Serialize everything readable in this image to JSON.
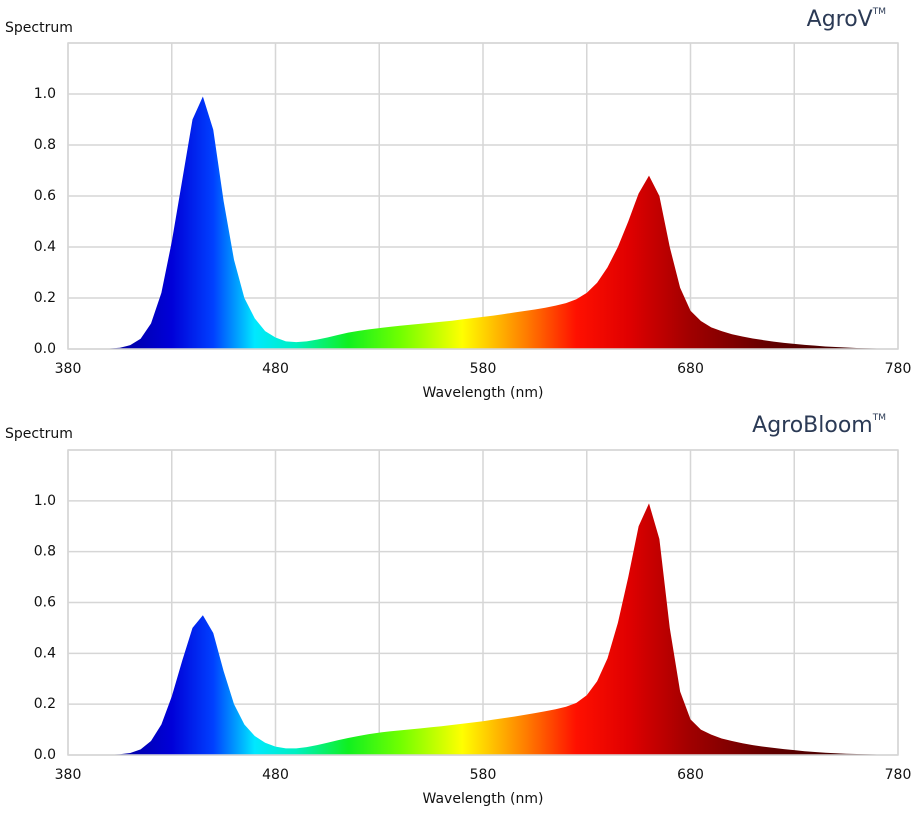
{
  "chart_data": [
    {
      "type": "area",
      "title": "AgroV",
      "title_mark": "TM",
      "y_label": "Spectrum",
      "x_label": "Wavelength (nm)",
      "xlim": [
        380,
        780
      ],
      "xticks": [
        380,
        480,
        580,
        680,
        780
      ],
      "xgrid": [
        380,
        430,
        480,
        530,
        580,
        630,
        680,
        730,
        780
      ],
      "ylim": [
        0,
        1.2
      ],
      "yticks": [
        {
          "value": 0,
          "label": "0.0"
        },
        0.2,
        0.4,
        0.6,
        0.8,
        {
          "value": 1,
          "label": "1.0"
        }
      ],
      "ygrid": [
        0,
        0.2,
        0.4,
        0.6,
        0.8,
        1,
        1.2
      ],
      "grid": true,
      "gradient": [
        {
          "x": 380,
          "color": "#00006e"
        },
        {
          "x": 430,
          "color": "#0000d8"
        },
        {
          "x": 450,
          "color": "#0040ff"
        },
        {
          "x": 470,
          "color": "#00e8ff"
        },
        {
          "x": 490,
          "color": "#00f0c0"
        },
        {
          "x": 515,
          "color": "#10f020"
        },
        {
          "x": 540,
          "color": "#70ff00"
        },
        {
          "x": 570,
          "color": "#ffff00"
        },
        {
          "x": 600,
          "color": "#ff8000"
        },
        {
          "x": 625,
          "color": "#ff1000"
        },
        {
          "x": 650,
          "color": "#e00000"
        },
        {
          "x": 680,
          "color": "#a00000"
        },
        {
          "x": 720,
          "color": "#600000"
        },
        {
          "x": 780,
          "color": "#300000"
        }
      ],
      "x": [
        380,
        385,
        390,
        395,
        400,
        405,
        410,
        415,
        420,
        425,
        430,
        435,
        440,
        445,
        450,
        455,
        460,
        465,
        470,
        475,
        480,
        485,
        490,
        495,
        500,
        505,
        510,
        515,
        520,
        525,
        530,
        535,
        540,
        545,
        550,
        555,
        560,
        565,
        570,
        575,
        580,
        585,
        590,
        595,
        600,
        605,
        610,
        615,
        620,
        625,
        630,
        635,
        640,
        645,
        650,
        655,
        660,
        665,
        670,
        675,
        680,
        685,
        690,
        695,
        700,
        705,
        710,
        715,
        720,
        725,
        730,
        735,
        740,
        745,
        750,
        755,
        760,
        765,
        770,
        775,
        780
      ],
      "values": [
        0,
        0,
        0,
        0,
        0.002,
        0.005,
        0.015,
        0.04,
        0.1,
        0.22,
        0.42,
        0.66,
        0.9,
        0.99,
        0.86,
        0.58,
        0.35,
        0.2,
        0.12,
        0.07,
        0.045,
        0.03,
        0.027,
        0.03,
        0.037,
        0.045,
        0.055,
        0.064,
        0.071,
        0.077,
        0.082,
        0.087,
        0.091,
        0.095,
        0.099,
        0.103,
        0.107,
        0.111,
        0.116,
        0.121,
        0.126,
        0.131,
        0.137,
        0.143,
        0.149,
        0.155,
        0.162,
        0.17,
        0.18,
        0.195,
        0.22,
        0.26,
        0.32,
        0.4,
        0.5,
        0.61,
        0.68,
        0.6,
        0.4,
        0.24,
        0.15,
        0.11,
        0.085,
        0.07,
        0.058,
        0.049,
        0.041,
        0.035,
        0.029,
        0.024,
        0.02,
        0.016,
        0.013,
        0.01,
        0.008,
        0.006,
        0.004,
        0.003,
        0.002,
        0.001,
        0
      ]
    },
    {
      "type": "area",
      "title": "AgroBloom",
      "title_mark": "TM",
      "y_label": "Spectrum",
      "x_label": "Wavelength (nm)",
      "xlim": [
        380,
        780
      ],
      "xticks": [
        380,
        480,
        580,
        680,
        780
      ],
      "xgrid": [
        380,
        430,
        480,
        530,
        580,
        630,
        680,
        730,
        780
      ],
      "ylim": [
        0,
        1.2
      ],
      "yticks": [
        {
          "value": 0,
          "label": "0.0"
        },
        0.2,
        0.4,
        0.6,
        0.8,
        {
          "value": 1,
          "label": "1.0"
        }
      ],
      "ygrid": [
        0,
        0.2,
        0.4,
        0.6,
        0.8,
        1,
        1.2
      ],
      "grid": true,
      "gradient": [
        {
          "x": 380,
          "color": "#00006e"
        },
        {
          "x": 430,
          "color": "#0000d8"
        },
        {
          "x": 450,
          "color": "#0040ff"
        },
        {
          "x": 470,
          "color": "#00e8ff"
        },
        {
          "x": 490,
          "color": "#00f0c0"
        },
        {
          "x": 515,
          "color": "#10f020"
        },
        {
          "x": 540,
          "color": "#70ff00"
        },
        {
          "x": 570,
          "color": "#ffff00"
        },
        {
          "x": 600,
          "color": "#ff8000"
        },
        {
          "x": 625,
          "color": "#ff1000"
        },
        {
          "x": 650,
          "color": "#e00000"
        },
        {
          "x": 680,
          "color": "#a00000"
        },
        {
          "x": 720,
          "color": "#600000"
        },
        {
          "x": 780,
          "color": "#300000"
        }
      ],
      "x": [
        380,
        385,
        390,
        395,
        400,
        405,
        410,
        415,
        420,
        425,
        430,
        435,
        440,
        445,
        450,
        455,
        460,
        465,
        470,
        475,
        480,
        485,
        490,
        495,
        500,
        505,
        510,
        515,
        520,
        525,
        530,
        535,
        540,
        545,
        550,
        555,
        560,
        565,
        570,
        575,
        580,
        585,
        590,
        595,
        600,
        605,
        610,
        615,
        620,
        625,
        630,
        635,
        640,
        645,
        650,
        655,
        660,
        665,
        670,
        675,
        680,
        685,
        690,
        695,
        700,
        705,
        710,
        715,
        720,
        725,
        730,
        735,
        740,
        745,
        750,
        755,
        760,
        765,
        770,
        775,
        780
      ],
      "values": [
        0,
        0,
        0,
        0,
        0.001,
        0.003,
        0.008,
        0.022,
        0.055,
        0.12,
        0.23,
        0.37,
        0.5,
        0.55,
        0.48,
        0.33,
        0.2,
        0.12,
        0.075,
        0.048,
        0.033,
        0.026,
        0.026,
        0.031,
        0.039,
        0.048,
        0.058,
        0.067,
        0.075,
        0.082,
        0.088,
        0.093,
        0.097,
        0.101,
        0.105,
        0.109,
        0.113,
        0.118,
        0.123,
        0.128,
        0.133,
        0.139,
        0.145,
        0.151,
        0.158,
        0.165,
        0.172,
        0.18,
        0.19,
        0.205,
        0.235,
        0.29,
        0.38,
        0.52,
        0.7,
        0.9,
        0.99,
        0.85,
        0.5,
        0.25,
        0.14,
        0.1,
        0.08,
        0.065,
        0.055,
        0.046,
        0.039,
        0.033,
        0.028,
        0.023,
        0.019,
        0.015,
        0.012,
        0.009,
        0.007,
        0.005,
        0.004,
        0.003,
        0.002,
        0.001,
        0
      ]
    }
  ]
}
